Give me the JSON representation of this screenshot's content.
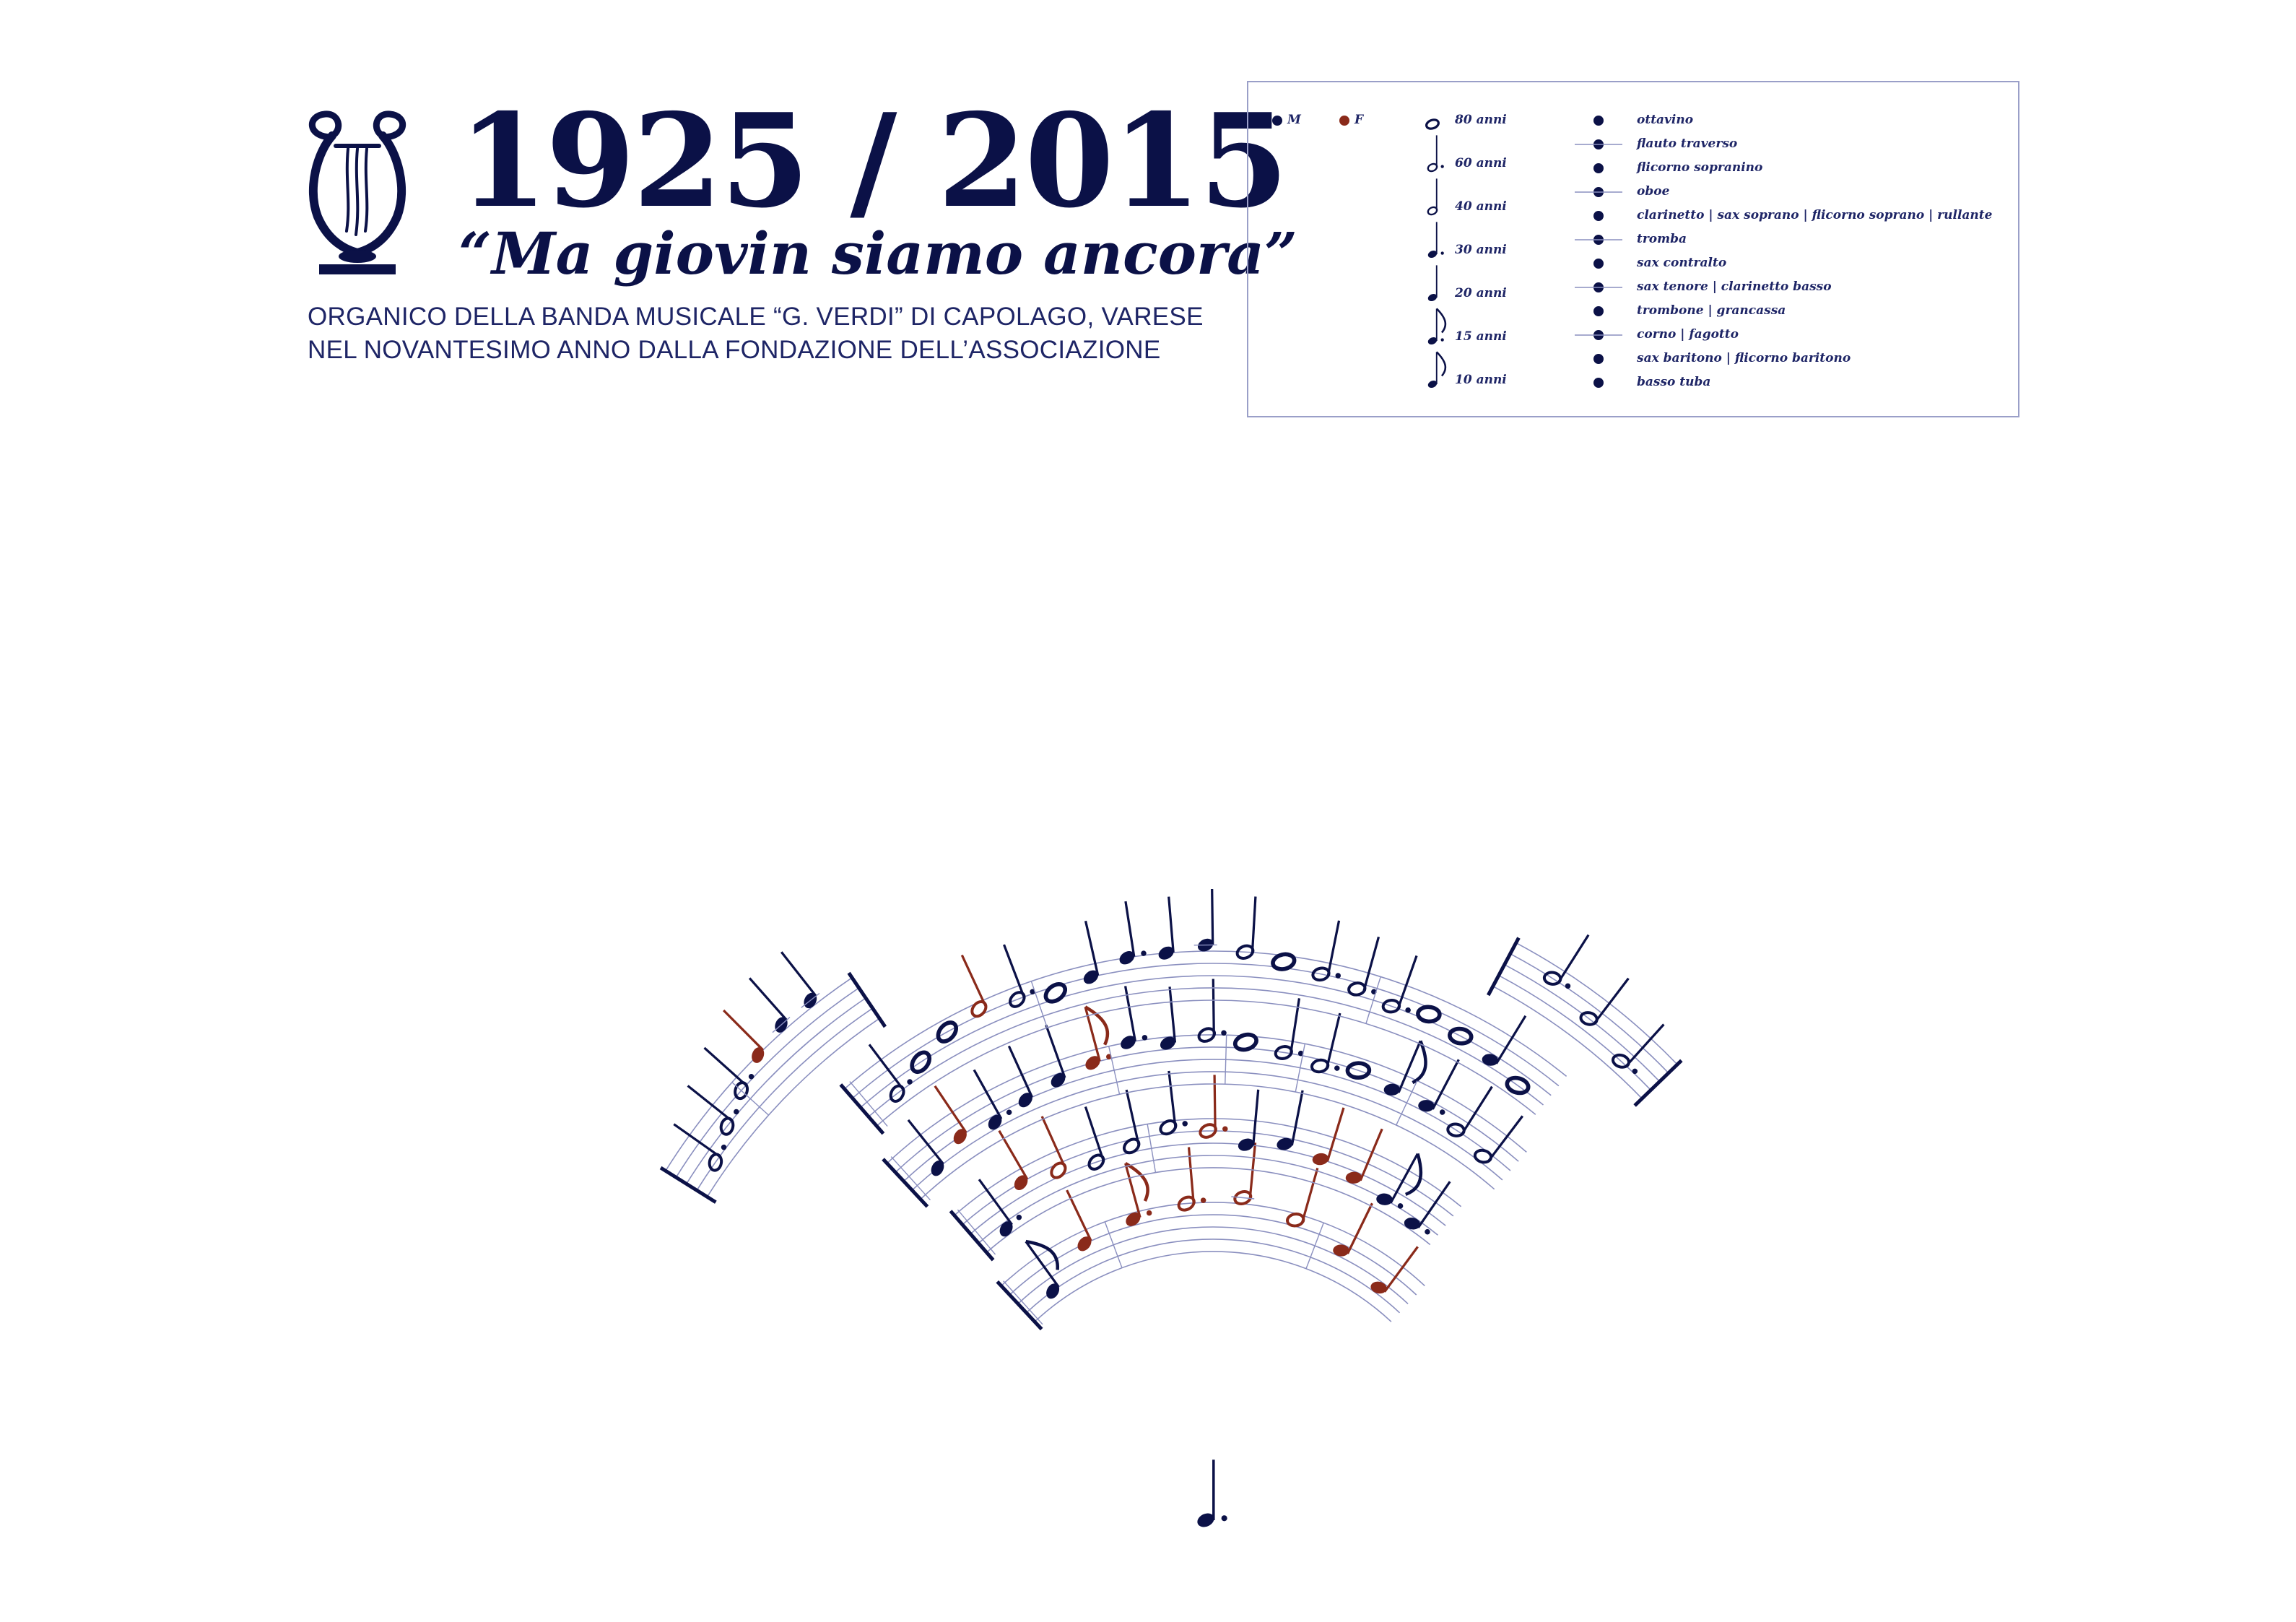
{
  "header": {
    "title": "1925 / 2015",
    "motto": "“Ma giovin siamo ancora”",
    "subtitle_line1": "ORGANICO DELLA BANDA MUSICALE “G. VERDI” DI CAPOLAGO, VARESE",
    "subtitle_line2": "NEL NOVANTESIMO ANNO DALLA FONDAZIONE DELL’ASSOCIAZIONE"
  },
  "legend": {
    "gender": [
      {
        "label": "M",
        "color": "#0b1147"
      },
      {
        "label": "F",
        "color": "#8a2a1a"
      }
    ],
    "ages": [
      {
        "label": "80 anni",
        "note": "whole"
      },
      {
        "label": "60 anni",
        "note": "dotted-half"
      },
      {
        "label": "40 anni",
        "note": "half"
      },
      {
        "label": "30 anni",
        "note": "dotted-quarter"
      },
      {
        "label": "20 anni",
        "note": "quarter"
      },
      {
        "label": "15 anni",
        "note": "dotted-eighth"
      },
      {
        "label": "10 anni",
        "note": "eighth"
      }
    ],
    "instruments": [
      {
        "label": "ottavino",
        "ledger": false
      },
      {
        "label": "flauto traverso",
        "ledger": true
      },
      {
        "label": "flicorno sopranino",
        "ledger": false
      },
      {
        "label": "oboe",
        "ledger": true
      },
      {
        "label": "clarinetto | sax soprano | flicorno soprano | rullante",
        "ledger": false
      },
      {
        "label": "tromba",
        "ledger": true
      },
      {
        "label": "sax contralto",
        "ledger": false
      },
      {
        "label": "sax tenore | clarinetto basso",
        "ledger": true
      },
      {
        "label": "trombone | grancassa",
        "ledger": false
      },
      {
        "label": "corno | fagotto",
        "ledger": true
      },
      {
        "label": "sax baritono | flicorno baritono",
        "ledger": false
      },
      {
        "label": "basso tuba",
        "ledger": false
      }
    ]
  },
  "colors": {
    "male": "#0b1147",
    "female": "#8a2a1a",
    "staff": "#8a8fbf"
  },
  "chart_data": {
    "type": "radial-staff",
    "rows": [
      {
        "notes": [
          {
            "dur": "eighth",
            "g": "M",
            "p": 2
          },
          {
            "dur": "quarter",
            "g": "F",
            "p": 6
          },
          {
            "dur": "dotted-eighth",
            "g": "F",
            "p": 7
          },
          {
            "dur": "dotted-half",
            "g": "F",
            "p": 8
          },
          {
            "dur": "half",
            "g": "F",
            "p": 9
          },
          {
            "dur": "half",
            "g": "F",
            "p": 7
          },
          {
            "dur": "quarter",
            "g": "F",
            "p": 5
          },
          {
            "dur": "quarter",
            "g": "F",
            "p": 3
          }
        ],
        "bars": [
          2,
          6
        ]
      },
      {
        "notes": [
          {
            "dur": "dotted-quarter",
            "g": "M",
            "p": 1
          },
          {
            "dur": "quarter",
            "g": "F",
            "p": 6
          },
          {
            "dur": "half",
            "g": "F",
            "p": 5
          },
          {
            "dur": "half",
            "g": "M",
            "p": 4
          },
          {
            "dur": "half",
            "g": "M",
            "p": 5
          },
          {
            "dur": "dotted-half",
            "g": "M",
            "p": 7
          },
          {
            "dur": "dotted-half",
            "g": "F",
            "p": 6
          },
          {
            "dur": "quarter",
            "g": "M",
            "p": 4
          },
          {
            "dur": "quarter",
            "g": "M",
            "p": 5
          },
          {
            "dur": "quarter",
            "g": "F",
            "p": 4
          },
          {
            "dur": "quarter",
            "g": "F",
            "p": 3
          },
          {
            "dur": "dotted-eighth",
            "g": "M",
            "p": 2
          },
          {
            "dur": "dotted-quarter",
            "g": "M",
            "p": 1
          }
        ],
        "bars": [
          5
        ]
      },
      {
        "notes": [
          {
            "dur": "quarter",
            "g": "M",
            "p": 2
          },
          {
            "dur": "quarter",
            "g": "F",
            "p": 4
          },
          {
            "dur": "dotted-quarter",
            "g": "M",
            "p": 3
          },
          {
            "dur": "quarter",
            "g": "M",
            "p": 4
          },
          {
            "dur": "quarter",
            "g": "M",
            "p": 5
          },
          {
            "dur": "dotted-eighth",
            "g": "F",
            "p": 6
          },
          {
            "dur": "dotted-quarter",
            "g": "M",
            "p": 8
          },
          {
            "dur": "quarter",
            "g": "M",
            "p": 7
          },
          {
            "dur": "dotted-half",
            "g": "M",
            "p": 8
          },
          {
            "dur": "whole",
            "g": "M",
            "p": 7
          },
          {
            "dur": "dotted-half",
            "g": "M",
            "p": 6
          },
          {
            "dur": "dotted-half",
            "g": "M",
            "p": 5
          },
          {
            "dur": "whole",
            "g": "M",
            "p": 6
          },
          {
            "dur": "eighth",
            "g": "M",
            "p": 5
          },
          {
            "dur": "dotted-quarter",
            "g": "M",
            "p": 5
          },
          {
            "dur": "half",
            "g": "M",
            "p": 4
          },
          {
            "dur": "half",
            "g": "M",
            "p": 3
          }
        ],
        "bars": [
          6,
          9,
          11,
          14
        ]
      },
      {
        "notes": [
          {
            "dur": "dotted-half",
            "g": "M",
            "p": 2
          },
          {
            "dur": "whole",
            "g": "M",
            "p": 4
          },
          {
            "dur": "whole",
            "g": "M",
            "p": 6
          },
          {
            "dur": "half",
            "g": "F",
            "p": 7
          },
          {
            "dur": "dotted-half",
            "g": "M",
            "p": 6
          },
          {
            "dur": "whole",
            "g": "M",
            "p": 5
          },
          {
            "dur": "quarter",
            "g": "M",
            "p": 6
          },
          {
            "dur": "dotted-quarter",
            "g": "M",
            "p": 8
          },
          {
            "dur": "quarter",
            "g": "M",
            "p": 8
          },
          {
            "dur": "quarter",
            "g": "M",
            "p": 9
          },
          {
            "dur": "half",
            "g": "M",
            "p": 8
          },
          {
            "dur": "whole",
            "g": "M",
            "p": 7
          },
          {
            "dur": "dotted-half",
            "g": "M",
            "p": 6
          },
          {
            "dur": "dotted-half",
            "g": "M",
            "p": 5
          },
          {
            "dur": "dotted-half",
            "g": "M",
            "p": 4
          },
          {
            "dur": "whole",
            "g": "M",
            "p": 5
          },
          {
            "dur": "whole",
            "g": "M",
            "p": 4
          },
          {
            "dur": "quarter",
            "g": "M",
            "p": 3
          },
          {
            "dur": "whole",
            "g": "M",
            "p": 2
          }
        ],
        "bars": [
          5,
          14
        ]
      },
      {
        "left": {
          "notes": [
            {
              "dur": "dotted-half",
              "g": "M",
              "p": 2
            },
            {
              "dur": "dotted-half",
              "g": "M",
              "p": 4
            },
            {
              "dur": "dotted-half",
              "g": "M",
              "p": 6
            },
            {
              "dur": "quarter",
              "g": "F",
              "p": 8
            },
            {
              "dur": "quarter",
              "g": "M",
              "p": 9
            },
            {
              "dur": "quarter",
              "g": "M",
              "p": 9
            }
          ]
        },
        "right": {
          "notes": [
            {
              "dur": "dotted-half",
              "g": "M",
              "p": 6
            },
            {
              "dur": "half",
              "g": "M",
              "p": 4
            },
            {
              "dur": "dotted-half",
              "g": "M",
              "p": 2
            }
          ]
        }
      },
      {
        "extra": {
          "dur": "dotted-quarter",
          "g": "M"
        }
      }
    ]
  }
}
